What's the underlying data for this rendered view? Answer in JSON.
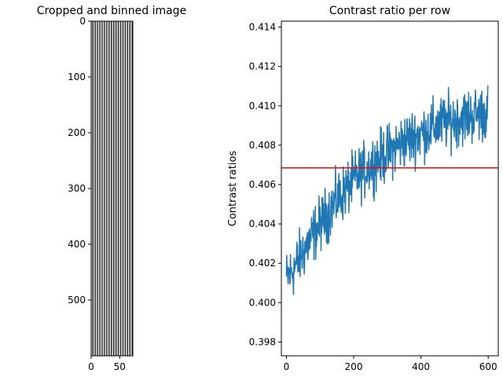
{
  "chart_data": [
    {
      "type": "heatmap",
      "title": "Cropped and binned image",
      "xlim": [
        0,
        73
      ],
      "ylim": [
        600,
        0
      ],
      "xticks": [
        0,
        50
      ],
      "yticks": [
        0,
        100,
        200,
        300,
        400,
        500
      ],
      "colormap": "gray",
      "column_count": 36,
      "pattern": "alternating light and dark vertical stripes"
    },
    {
      "type": "line",
      "title": "Contrast ratio per row",
      "xlabel": "",
      "ylabel": "Contrast ratios",
      "xlim": [
        -15,
        630
      ],
      "ylim": [
        0.3973,
        0.4143
      ],
      "xticks": [
        0,
        200,
        400,
        600
      ],
      "yticks": [
        0.398,
        0.4,
        0.402,
        0.404,
        0.406,
        0.408,
        0.41,
        0.412,
        0.414
      ],
      "series": [
        {
          "color": "#1f77b4",
          "trend_x": [
            0,
            25,
            50,
            75,
            100,
            125,
            150,
            175,
            200,
            225,
            250,
            275,
            300,
            325,
            350,
            375,
            400,
            425,
            450,
            475,
            500,
            525,
            550,
            575,
            600
          ],
          "trend_y": [
            0.4012,
            0.4018,
            0.4026,
            0.4033,
            0.404,
            0.4046,
            0.4052,
            0.4057,
            0.4062,
            0.4066,
            0.407,
            0.4073,
            0.4076,
            0.4079,
            0.4082,
            0.4084,
            0.4086,
            0.4088,
            0.409,
            0.4092,
            0.4093,
            0.4094,
            0.4095,
            0.4096,
            0.4097
          ],
          "noise_amplitude": 0.0013,
          "point_count": 600
        }
      ],
      "hline": {
        "y": 0.40685,
        "color": "#ff0000"
      }
    }
  ]
}
